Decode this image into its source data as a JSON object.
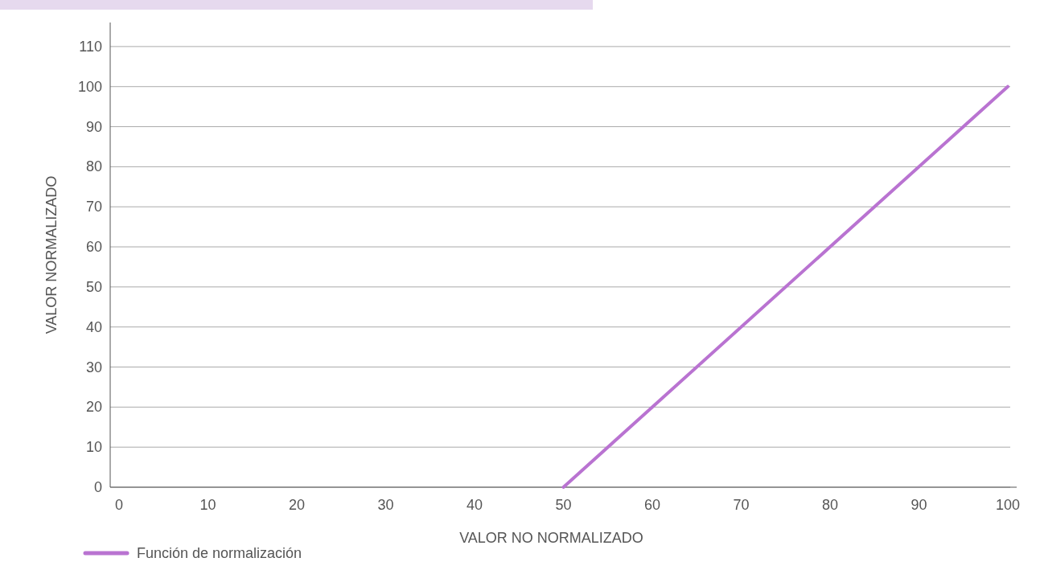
{
  "chart_data": {
    "type": "line",
    "xlabel": "VALOR NO NORMALIZADO",
    "ylabel": "VALOR NORMALIZADO",
    "x": [
      50,
      100
    ],
    "series": [
      {
        "name": "Función de normalización",
        "color": "#b973d1",
        "values": [
          0,
          100
        ]
      }
    ],
    "xlim": [
      -1,
      101
    ],
    "xticks": [
      0,
      10,
      20,
      30,
      40,
      50,
      60,
      70,
      80,
      90,
      100
    ],
    "ylim": [
      0,
      116
    ],
    "yticks": [
      0,
      10,
      20,
      30,
      40,
      50,
      60,
      70,
      80,
      90,
      100,
      110
    ],
    "grid": "y",
    "legend": "bottom left",
    "marker": "none",
    "line_style": "solid"
  }
}
